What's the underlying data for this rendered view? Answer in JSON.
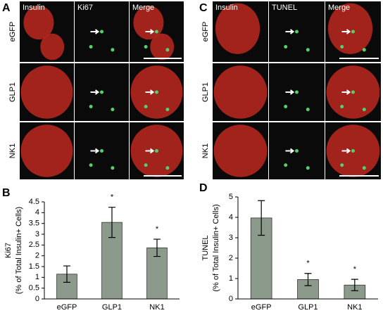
{
  "panels": [
    {
      "letter": "A",
      "columns": [
        "Insulin",
        "Ki67",
        "Merge"
      ],
      "rows": [
        "eGFP",
        "GLP1",
        "NK1"
      ]
    },
    {
      "letter": "C",
      "columns": [
        "Insulin",
        "TUNEL",
        "Merge"
      ],
      "rows": [
        "eGFP",
        "GLP1",
        "NK1"
      ]
    }
  ],
  "chart_data": [
    {
      "type": "bar",
      "panel_label": "B",
      "y_label": [
        "Ki67",
        "(% of Total Insulin+ Cells)"
      ],
      "categories": [
        "eGFP",
        "GLP1",
        "NK1"
      ],
      "values": [
        1.15,
        3.55,
        2.37
      ],
      "errors": [
        0.38,
        0.7,
        0.4
      ],
      "annotations": [
        null,
        "*",
        "*"
      ],
      "color": "#8c9a8c",
      "ylim": [
        0,
        4.5
      ],
      "yticks": [
        0,
        0.5,
        1,
        1.5,
        2,
        2.5,
        3,
        3.5,
        4,
        4.5
      ]
    },
    {
      "type": "bar",
      "panel_label": "D",
      "y_label": [
        "TUNEL",
        "(% of Total Insulin+ Cells)"
      ],
      "categories": [
        "eGFP",
        "GLP1",
        "NK1"
      ],
      "values": [
        3.97,
        0.95,
        0.68
      ],
      "errors": [
        0.85,
        0.3,
        0.28
      ],
      "annotations": [
        null,
        "*",
        "*"
      ],
      "color": "#8c9a8c",
      "ylim": [
        0,
        5
      ],
      "yticks": [
        0,
        1,
        2,
        3,
        4,
        5
      ]
    }
  ]
}
